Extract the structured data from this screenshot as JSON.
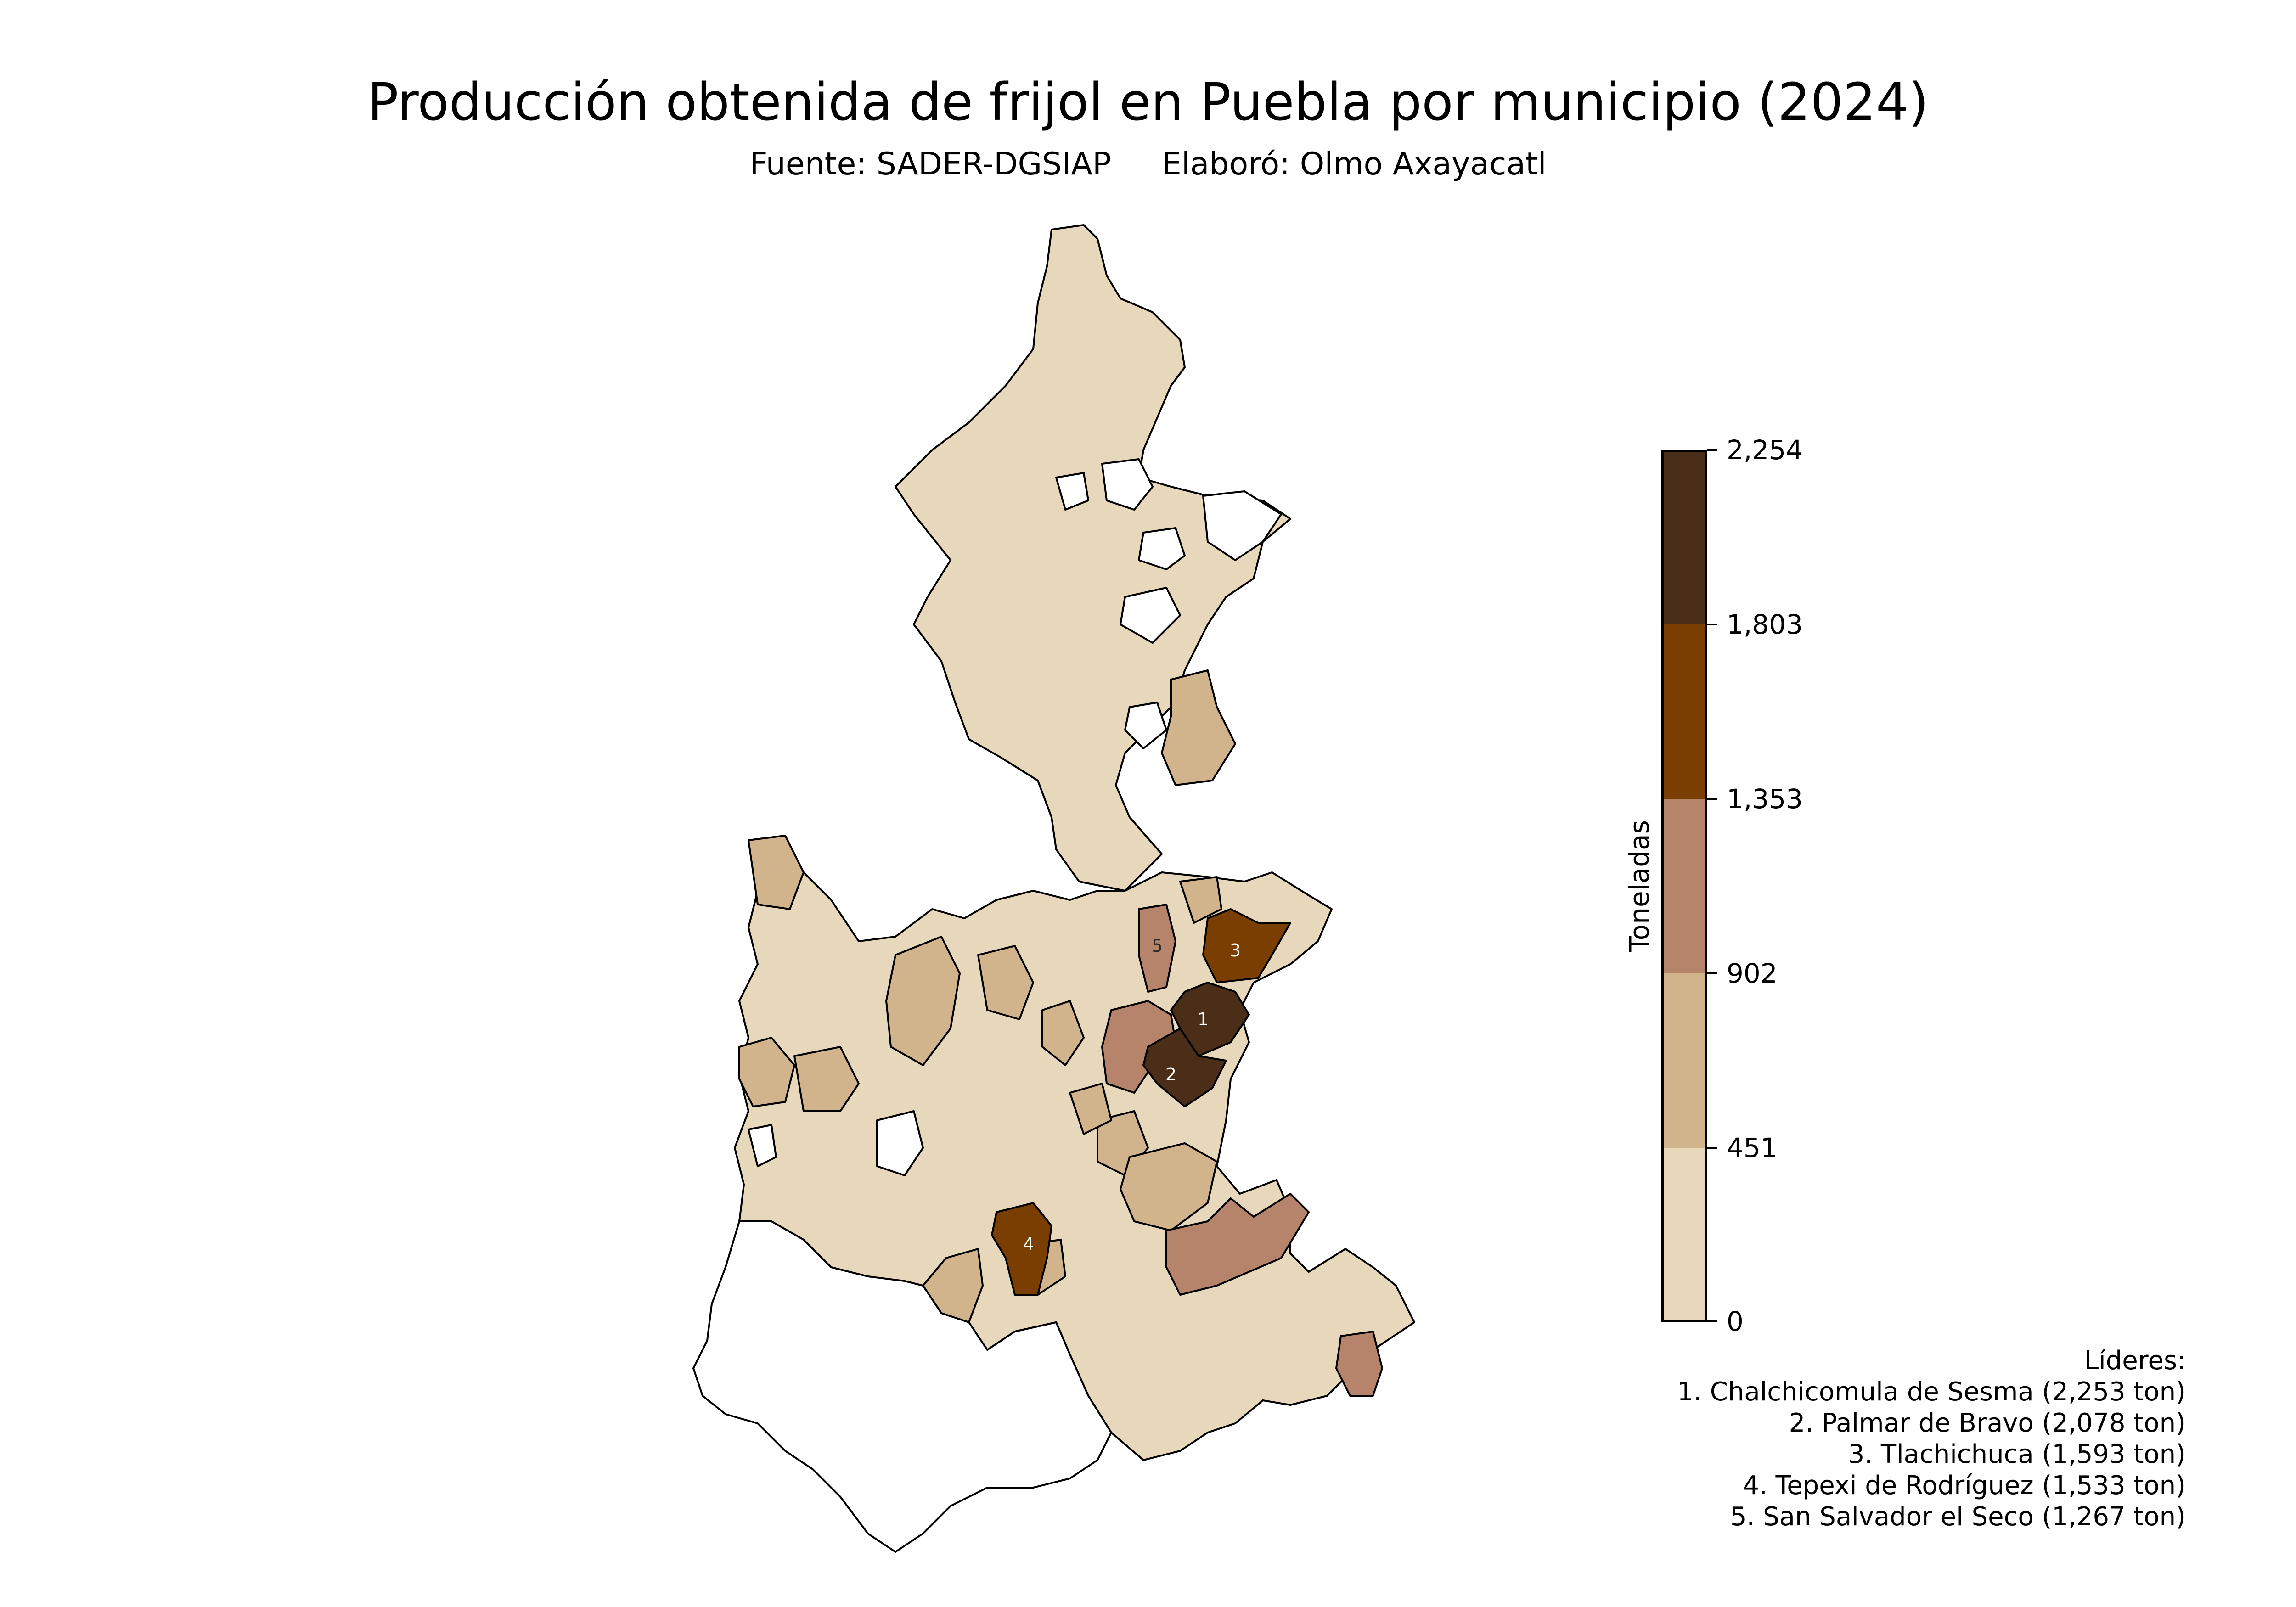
{
  "title": "Producción obtenida de frijol en Puebla por municipio (2024)",
  "subtitle": {
    "source": "Fuente: SADER-DGSIAP",
    "author": "Elaboró: Olmo Axayacatl"
  },
  "colorbar": {
    "label": "Toneladas",
    "ticks": [
      "2,254",
      "1,803",
      "1,353",
      "902",
      "451",
      "0"
    ],
    "classes": [
      {
        "range": [
          0,
          451
        ],
        "color": "#e8d8bb"
      },
      {
        "range": [
          451,
          902
        ],
        "color": "#d2b48c"
      },
      {
        "range": [
          902,
          1353
        ],
        "color": "#b5846b"
      },
      {
        "range": [
          1353,
          1803
        ],
        "color": "#7a3f00"
      },
      {
        "range": [
          1803,
          2254
        ],
        "color": "#4a2e18"
      }
    ],
    "no_data_color": "#ffffff"
  },
  "map_labels": [
    "1",
    "2",
    "3",
    "4",
    "5"
  ],
  "leaders": {
    "heading": "Líderes:",
    "items": [
      "1. Chalchicomula de Sesma (2,253 ton)",
      "2. Palmar de Bravo (2,078 ton)",
      "3. Tlachichuca (1,593 ton)",
      "4. Tepexi de Rodríguez (1,533 ton)",
      "5. San Salvador el Seco (1,267 ton)"
    ]
  }
}
